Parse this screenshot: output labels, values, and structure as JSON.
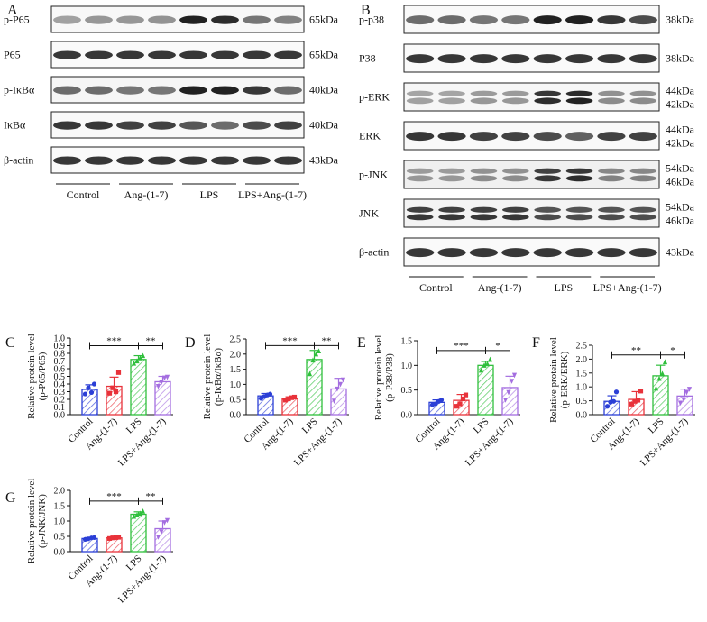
{
  "panel_letters": [
    "A",
    "B",
    "C",
    "D",
    "E",
    "F",
    "G"
  ],
  "colors": {
    "control": "#2b3fd6",
    "ang": "#e8323a",
    "lps": "#2fbf3c",
    "lps_ang": "#a46ee0"
  },
  "blot_groups": [
    "Control",
    "Ang-(1-7)",
    "LPS",
    "LPS+Ang-(1-7)"
  ],
  "blots_a": {
    "letter": "A",
    "rows": [
      {
        "label": "p-P65",
        "kda": [
          "65kDa"
        ],
        "intensity": [
          0.35,
          0.4,
          0.4,
          0.42,
          0.95,
          0.9,
          0.55,
          0.5
        ],
        "doublet": false,
        "bg": 0.12
      },
      {
        "label": "P65",
        "kda": [
          "65kDa"
        ],
        "intensity": [
          0.85,
          0.85,
          0.85,
          0.85,
          0.85,
          0.85,
          0.85,
          0.85
        ],
        "doublet": false,
        "bg": 0.08
      },
      {
        "label": "p-IκBα",
        "kda": [
          "40kDa"
        ],
        "intensity": [
          0.6,
          0.6,
          0.55,
          0.55,
          0.95,
          0.95,
          0.85,
          0.6
        ],
        "doublet": false,
        "bg": 0.15
      },
      {
        "label": "IκBα",
        "kda": [
          "40kDa"
        ],
        "intensity": [
          0.85,
          0.85,
          0.8,
          0.8,
          0.7,
          0.6,
          0.75,
          0.8
        ],
        "doublet": false,
        "bg": 0.1
      },
      {
        "label": "β-actin",
        "kda": [
          "43kDa"
        ],
        "intensity": [
          0.85,
          0.85,
          0.85,
          0.85,
          0.85,
          0.85,
          0.85,
          0.85
        ],
        "doublet": false,
        "bg": 0.08
      }
    ]
  },
  "blots_b": {
    "letter": "B",
    "rows": [
      {
        "label": "p-p38",
        "kda": [
          "38kDa"
        ],
        "intensity": [
          0.6,
          0.6,
          0.55,
          0.55,
          0.95,
          0.95,
          0.85,
          0.75
        ],
        "doublet": false,
        "bg": 0.1
      },
      {
        "label": "P38",
        "kda": [
          "38kDa"
        ],
        "intensity": [
          0.85,
          0.85,
          0.85,
          0.85,
          0.85,
          0.85,
          0.85,
          0.85
        ],
        "doublet": false,
        "bg": 0.08
      },
      {
        "label": "p-ERK",
        "kda": [
          "44kDa",
          "42kDa"
        ],
        "intensity": [
          0.35,
          0.35,
          0.4,
          0.4,
          0.9,
          0.95,
          0.45,
          0.45
        ],
        "doublet": true,
        "bg": 0.15
      },
      {
        "label": "ERK",
        "kda": [
          "44kDa",
          "42kDa"
        ],
        "intensity": [
          0.85,
          0.85,
          0.8,
          0.8,
          0.75,
          0.65,
          0.8,
          0.8
        ],
        "doublet": false,
        "bg": 0.1
      },
      {
        "label": "p-JNK",
        "kda": [
          "54kDa",
          "46kDa"
        ],
        "intensity": [
          0.4,
          0.4,
          0.45,
          0.45,
          0.85,
          0.9,
          0.5,
          0.5
        ],
        "doublet": true,
        "bg": 0.25
      },
      {
        "label": "JNK",
        "kda": [
          "54kDa",
          "46kDa"
        ],
        "intensity": [
          0.85,
          0.85,
          0.85,
          0.85,
          0.75,
          0.75,
          0.75,
          0.75
        ],
        "doublet": true,
        "bg": 0.18
      },
      {
        "label": "β-actin",
        "kda": [
          "43kDa"
        ],
        "intensity": [
          0.85,
          0.85,
          0.85,
          0.85,
          0.85,
          0.85,
          0.85,
          0.85
        ],
        "doublet": false,
        "bg": 0.08
      }
    ]
  },
  "chart_data": [
    {
      "letter": "C",
      "type": "bar",
      "ylabel": [
        "Relative protein level",
        "(p-P65/P65)"
      ],
      "categories": [
        "Control",
        "Ang-(1-7)",
        "LPS",
        "LPS+Ang-(1-7)"
      ],
      "values": [
        0.33,
        0.37,
        0.72,
        0.43
      ],
      "errors": [
        0.06,
        0.12,
        0.05,
        0.07
      ],
      "points": [
        [
          0.27,
          0.35,
          0.29,
          0.4
        ],
        [
          0.28,
          0.35,
          0.3,
          0.55
        ],
        [
          0.67,
          0.7,
          0.74,
          0.77
        ],
        [
          0.37,
          0.42,
          0.48,
          0.49
        ]
      ],
      "ylim": [
        0,
        1.0
      ],
      "yticks": [
        0,
        0.1,
        0.2,
        0.3,
        0.4,
        0.5,
        0.6,
        0.7,
        0.8,
        0.9,
        1.0
      ],
      "ytick_labels": [
        "0.0",
        "0.1",
        "0.2",
        "0.3",
        "0.4",
        "0.5",
        "0.6",
        "0.7",
        "0.8",
        "0.9",
        "1.0"
      ],
      "sig": [
        {
          "label": "***",
          "from": 0,
          "to": 2,
          "y": 0.9
        },
        {
          "label": "**",
          "from": 2,
          "to": 3,
          "y": 0.9
        }
      ]
    },
    {
      "letter": "D",
      "type": "bar",
      "ylabel": [
        "Relative protein level",
        "(p-IκBα/IκBα)"
      ],
      "categories": [
        "Control",
        "Ang-(1-7)",
        "LPS",
        "LPS+Ang-(1-7)"
      ],
      "values": [
        0.62,
        0.53,
        1.82,
        0.85
      ],
      "errors": [
        0.08,
        0.06,
        0.3,
        0.35
      ],
      "points": [
        [
          0.54,
          0.6,
          0.65,
          0.68
        ],
        [
          0.48,
          0.52,
          0.56,
          0.58
        ],
        [
          1.35,
          1.8,
          2.0,
          2.1
        ],
        [
          0.45,
          0.85,
          1.0,
          1.15
        ]
      ],
      "ylim": [
        0,
        2.5
      ],
      "yticks": [
        0,
        0.5,
        1.0,
        1.5,
        2.0,
        2.5
      ],
      "ytick_labels": [
        "0.0",
        "0.5",
        "1.0",
        "1.5",
        "2.0",
        "2.5"
      ],
      "sig": [
        {
          "label": "***",
          "from": 0,
          "to": 2,
          "y": 2.28
        },
        {
          "label": "**",
          "from": 2,
          "to": 3,
          "y": 2.28
        }
      ]
    },
    {
      "letter": "E",
      "type": "bar",
      "ylabel": [
        "Relative protein level",
        "(p-P38/P38)"
      ],
      "categories": [
        "Control",
        "Ang-(1-7)",
        "LPS",
        "LPS+Ang-(1-7)"
      ],
      "values": [
        0.25,
        0.29,
        1.0,
        0.55
      ],
      "errors": [
        0.05,
        0.12,
        0.08,
        0.23
      ],
      "points": [
        [
          0.2,
          0.22,
          0.27,
          0.3
        ],
        [
          0.17,
          0.22,
          0.32,
          0.4
        ],
        [
          0.9,
          1.0,
          1.03,
          1.12
        ],
        [
          0.3,
          0.45,
          0.68,
          0.8
        ]
      ],
      "ylim": [
        0,
        1.5
      ],
      "yticks": [
        0,
        0.5,
        1.0,
        1.5
      ],
      "ytick_labels": [
        "0.0",
        "0.5",
        "1.0",
        "1.5"
      ],
      "sig": [
        {
          "label": "***",
          "from": 0,
          "to": 2,
          "y": 1.3
        },
        {
          "label": "*",
          "from": 2,
          "to": 3,
          "y": 1.3
        }
      ]
    },
    {
      "letter": "F",
      "type": "bar",
      "ylabel": [
        "Relative protein level",
        "(p-ERK/ERK)"
      ],
      "categories": [
        "Control",
        "Ang-(1-7)",
        "LPS",
        "LPS+Ang-(1-7)"
      ],
      "values": [
        0.48,
        0.55,
        1.4,
        0.67
      ],
      "errors": [
        0.2,
        0.28,
        0.38,
        0.25
      ],
      "points": [
        [
          0.3,
          0.45,
          0.48,
          0.82
        ],
        [
          0.38,
          0.48,
          0.52,
          0.85
        ],
        [
          0.95,
          1.3,
          1.48,
          1.9
        ],
        [
          0.42,
          0.55,
          0.8,
          0.92
        ]
      ],
      "ylim": [
        0,
        2.5
      ],
      "yticks": [
        0,
        0.5,
        1.0,
        1.5,
        2.0,
        2.5
      ],
      "ytick_labels": [
        "0.0",
        "0.5",
        "1.0",
        "1.5",
        "2.0",
        "2.5"
      ],
      "sig": [
        {
          "label": "**",
          "from": 0,
          "to": 2,
          "y": 2.15
        },
        {
          "label": "*",
          "from": 2,
          "to": 3,
          "y": 2.15
        }
      ]
    },
    {
      "letter": "G",
      "type": "bar",
      "ylabel": [
        "Relative protein level",
        "(p-JNK/JNK)"
      ],
      "categories": [
        "Control",
        "Ang-(1-7)",
        "LPS",
        "LPS+Ang-(1-7)"
      ],
      "values": [
        0.43,
        0.45,
        1.22,
        0.75
      ],
      "errors": [
        0.03,
        0.02,
        0.08,
        0.25
      ],
      "points": [
        [
          0.4,
          0.42,
          0.45,
          0.46
        ],
        [
          0.43,
          0.45,
          0.46,
          0.47
        ],
        [
          1.15,
          1.2,
          1.25,
          1.32
        ],
        [
          0.48,
          0.65,
          0.95,
          1.02
        ]
      ],
      "ylim": [
        0,
        2.0
      ],
      "yticks": [
        0,
        0.5,
        1.0,
        1.5,
        2.0
      ],
      "ytick_labels": [
        "0.0",
        "0.5",
        "1.0",
        "1.5",
        "2.0"
      ],
      "sig": [
        {
          "label": "***",
          "from": 0,
          "to": 2,
          "y": 1.65
        },
        {
          "label": "**",
          "from": 2,
          "to": 3,
          "y": 1.65
        }
      ]
    }
  ]
}
